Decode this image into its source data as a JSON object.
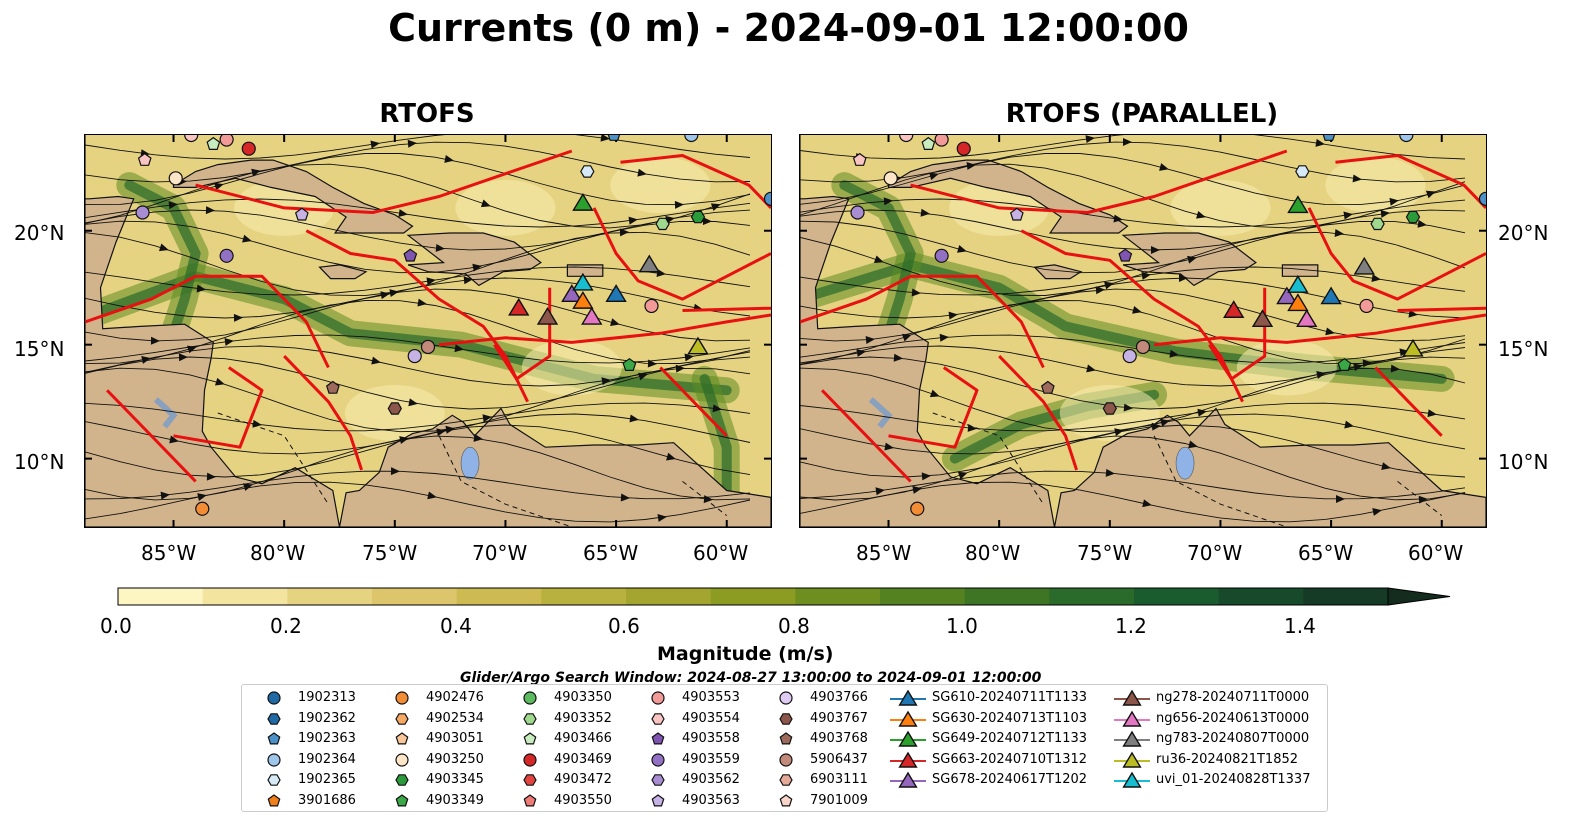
{
  "title": "Currents (0 m) - 2024-09-01 12:00:00",
  "panels": [
    {
      "title": "RTOFS"
    },
    {
      "title": "RTOFS (PARALLEL)"
    }
  ],
  "axes": {
    "lat_labels": [
      "20°N",
      "15°N",
      "10°N"
    ],
    "lon_labels": [
      "85°W",
      "80°W",
      "75°W",
      "70°W",
      "65°W",
      "60°W"
    ],
    "lon_range": [
      -89,
      -58
    ],
    "lat_range": [
      7,
      24.2
    ]
  },
  "colorbar": {
    "label": "Magnitude (m/s)",
    "ticks": [
      "0.0",
      "0.2",
      "0.4",
      "0.6",
      "0.8",
      "1.0",
      "1.2",
      "1.4"
    ],
    "range": [
      0,
      1.5
    ],
    "colors": [
      "#fdf6c3",
      "#f3e4a0",
      "#e6d382",
      "#dcc56a",
      "#cdbb52",
      "#b9b13e",
      "#a3a52f",
      "#8c9b22",
      "#6f8e20",
      "#558221",
      "#3e7524",
      "#2a6a2a",
      "#1a5c2e",
      "#164a2a",
      "#153a25",
      "#142c1e"
    ],
    "extend": "max"
  },
  "search_window": "Glider/Argo Search Window: 2024-08-27 13:00:00 to 2024-09-01 12:00:00",
  "legend": {
    "columns": [
      [
        {
          "label": "1902313",
          "marker": "circle",
          "color": "#1f6aa5"
        },
        {
          "label": "1902362",
          "marker": "hexagon",
          "color": "#1f6aa5"
        },
        {
          "label": "1902363",
          "marker": "pentagon",
          "color": "#4c92c9"
        },
        {
          "label": "1902364",
          "marker": "circle",
          "color": "#9dc6ea"
        },
        {
          "label": "1902365",
          "marker": "hexagon",
          "color": "#d6e9f7"
        },
        {
          "label": "3901686",
          "marker": "pentagon",
          "color": "#f07f1a"
        }
      ],
      [
        {
          "label": "4902476",
          "marker": "circle",
          "color": "#f28d35"
        },
        {
          "label": "4902534",
          "marker": "hexagon",
          "color": "#f6a964"
        },
        {
          "label": "4903051",
          "marker": "pentagon",
          "color": "#f9c79a"
        },
        {
          "label": "4903250",
          "marker": "circle",
          "color": "#fde5c8"
        },
        {
          "label": "4903345",
          "marker": "hexagon",
          "color": "#2a9a3a"
        },
        {
          "label": "4903349",
          "marker": "pentagon",
          "color": "#3aa846"
        }
      ],
      [
        {
          "label": "4903350",
          "marker": "circle",
          "color": "#5dbb5f"
        },
        {
          "label": "4903352",
          "marker": "hexagon",
          "color": "#9fd98e"
        },
        {
          "label": "4903466",
          "marker": "pentagon",
          "color": "#c8ecbd"
        },
        {
          "label": "4903469",
          "marker": "circle",
          "color": "#d62728"
        },
        {
          "label": "4903472",
          "marker": "hexagon",
          "color": "#e2453f"
        },
        {
          "label": "4903550",
          "marker": "pentagon",
          "color": "#ef7b77"
        }
      ],
      [
        {
          "label": "4903553",
          "marker": "circle",
          "color": "#f29a98"
        },
        {
          "label": "4903554",
          "marker": "hexagon",
          "color": "#f9c5c3"
        },
        {
          "label": "4903558",
          "marker": "pentagon",
          "color": "#7f55b1"
        },
        {
          "label": "4903559",
          "marker": "circle",
          "color": "#9271c4"
        },
        {
          "label": "4903562",
          "marker": "hexagon",
          "color": "#a98dd3"
        },
        {
          "label": "4903563",
          "marker": "pentagon",
          "color": "#c6b2e4"
        }
      ],
      [
        {
          "label": "4903766",
          "marker": "circle",
          "color": "#e0ccf2"
        },
        {
          "label": "4903767",
          "marker": "hexagon",
          "color": "#8c564b"
        },
        {
          "label": "4903768",
          "marker": "pentagon",
          "color": "#9e6a5c"
        },
        {
          "label": "5906437",
          "marker": "circle",
          "color": "#c3897a"
        },
        {
          "label": "6903111",
          "marker": "hexagon",
          "color": "#e5aa98"
        },
        {
          "label": "7901009",
          "marker": "pentagon",
          "color": "#f8d5c8"
        }
      ],
      [
        {
          "label": "SG610-20240711T1133",
          "marker": "triangle",
          "color": "#1f77b4"
        },
        {
          "label": "SG630-20240713T1103",
          "marker": "triangle",
          "color": "#ff7f0e"
        },
        {
          "label": "SG649-20240712T1133",
          "marker": "triangle",
          "color": "#2ca02c"
        },
        {
          "label": "SG663-20240710T1312",
          "marker": "triangle",
          "color": "#d62728"
        },
        {
          "label": "SG678-20240617T1202",
          "marker": "triangle",
          "color": "#9467bd"
        }
      ],
      [
        {
          "label": "ng278-20240711T0000",
          "marker": "triangle",
          "color": "#8c564b"
        },
        {
          "label": "ng656-20240613T0000",
          "marker": "triangle",
          "color": "#e377c2"
        },
        {
          "label": "ng783-20240807T0000",
          "marker": "triangle",
          "color": "#7f7f7f"
        },
        {
          "label": "ru36-20240821T1852",
          "marker": "triangle",
          "color": "#bcbd22"
        },
        {
          "label": "uvi_01-20240828T1337",
          "marker": "triangle",
          "color": "#17becf"
        }
      ]
    ]
  },
  "map_markers": {
    "floats": [
      {
        "lon": -84.2,
        "lat": 24.2,
        "color": "#f9c5c3",
        "marker": "circle"
      },
      {
        "lon": -83.2,
        "lat": 23.8,
        "color": "#c8ecbd",
        "marker": "pentagon"
      },
      {
        "lon": -82.6,
        "lat": 24.0,
        "color": "#f29a98",
        "marker": "circle"
      },
      {
        "lon": -81.6,
        "lat": 23.6,
        "color": "#d62728",
        "marker": "circle"
      },
      {
        "lon": -86.3,
        "lat": 23.1,
        "color": "#f9c5c3",
        "marker": "pentagon"
      },
      {
        "lon": -84.9,
        "lat": 22.3,
        "color": "#fde5c8",
        "marker": "circle"
      },
      {
        "lon": -86.4,
        "lat": 20.8,
        "color": "#a98dd3",
        "marker": "circle"
      },
      {
        "lon": -79.2,
        "lat": 20.7,
        "color": "#c6b2e4",
        "marker": "pentagon"
      },
      {
        "lon": -82.6,
        "lat": 18.9,
        "color": "#9271c4",
        "marker": "circle"
      },
      {
        "lon": -74.3,
        "lat": 18.9,
        "color": "#7f55b1",
        "marker": "pentagon"
      },
      {
        "lon": -73.5,
        "lat": 14.9,
        "color": "#c3897a",
        "marker": "circle"
      },
      {
        "lon": -74.1,
        "lat": 14.5,
        "color": "#c6b2e4",
        "marker": "circle"
      },
      {
        "lon": -77.8,
        "lat": 13.1,
        "color": "#9e6a5c",
        "marker": "pentagon"
      },
      {
        "lon": -75.0,
        "lat": 12.2,
        "color": "#8c564b",
        "marker": "hexagon"
      },
      {
        "lon": -83.7,
        "lat": 7.8,
        "color": "#f28d35",
        "marker": "circle"
      },
      {
        "lon": -66.3,
        "lat": 22.6,
        "color": "#d6e9f7",
        "marker": "hexagon"
      },
      {
        "lon": -65.1,
        "lat": 24.2,
        "color": "#4c92c9",
        "marker": "pentagon"
      },
      {
        "lon": -61.6,
        "lat": 24.2,
        "color": "#9dc6ea",
        "marker": "circle"
      },
      {
        "lon": -58.0,
        "lat": 21.4,
        "color": "#4c92c9",
        "marker": "circle"
      },
      {
        "lon": -62.9,
        "lat": 20.3,
        "color": "#9fd98e",
        "marker": "hexagon"
      },
      {
        "lon": -61.3,
        "lat": 20.6,
        "color": "#2a9a3a",
        "marker": "hexagon"
      },
      {
        "lon": -63.4,
        "lat": 16.7,
        "color": "#f29a98",
        "marker": "circle"
      },
      {
        "lon": -64.4,
        "lat": 14.1,
        "color": "#3aa846",
        "marker": "pentagon"
      }
    ],
    "gliders_a": [
      {
        "lon": -69.4,
        "lat": 16.6,
        "color": "#d62728"
      },
      {
        "lon": -68.1,
        "lat": 16.2,
        "color": "#8c564b"
      },
      {
        "lon": -67.0,
        "lat": 17.2,
        "color": "#9467bd"
      },
      {
        "lon": -66.5,
        "lat": 16.9,
        "color": "#ff7f0e"
      },
      {
        "lon": -66.1,
        "lat": 16.2,
        "color": "#e377c2"
      },
      {
        "lon": -66.5,
        "lat": 17.7,
        "color": "#17becf"
      },
      {
        "lon": -65.0,
        "lat": 17.2,
        "color": "#1f77b4"
      },
      {
        "lon": -63.5,
        "lat": 18.5,
        "color": "#7f7f7f"
      },
      {
        "lon": -66.5,
        "lat": 21.2,
        "color": "#2ca02c"
      },
      {
        "lon": -61.3,
        "lat": 14.9,
        "color": "#bcbd22"
      }
    ]
  }
}
